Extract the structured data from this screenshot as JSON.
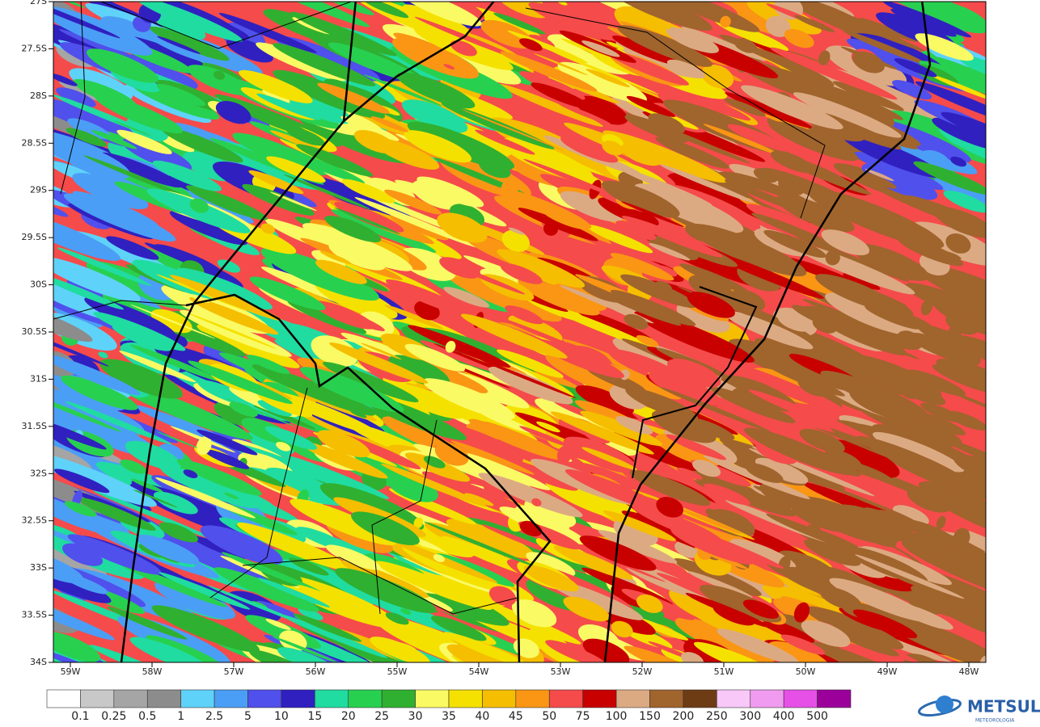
{
  "map": {
    "lat_labels": [
      "27S",
      "27.5S",
      "28S",
      "28.5S",
      "29S",
      "29.5S",
      "30S",
      "30.5S",
      "31S",
      "31.5S",
      "32S",
      "32.5S",
      "33S",
      "33.5S",
      "34S"
    ],
    "lon_labels": [
      "59W",
      "58W",
      "57W",
      "56W",
      "55W",
      "54W",
      "53W",
      "52W",
      "51W",
      "50W",
      "49W",
      "48W"
    ]
  },
  "legend": {
    "labels": [
      "0.1",
      "0.25",
      "0.5",
      "1",
      "2.5",
      "5",
      "10",
      "15",
      "20",
      "25",
      "30",
      "35",
      "40",
      "45",
      "50",
      "75",
      "100",
      "150",
      "200",
      "250",
      "300",
      "400",
      "500"
    ],
    "colors": [
      "#ffffff",
      "#c8c8c8",
      "#a5a5a5",
      "#8c8c8c",
      "#5fd2fa",
      "#4b9ef5",
      "#5050ec",
      "#3020c0",
      "#20dca0",
      "#28d050",
      "#30b030",
      "#fafa64",
      "#f5e100",
      "#f5be00",
      "#fa9614",
      "#f54b4b",
      "#c80000",
      "#dcaa82",
      "#a0642d",
      "#6e3c14",
      "#f8c8f8",
      "#f09bf0",
      "#e650e6",
      "#9b009b"
    ]
  },
  "logo": {
    "name": "METSUL",
    "tagline": "METEOROLOGIA"
  }
}
